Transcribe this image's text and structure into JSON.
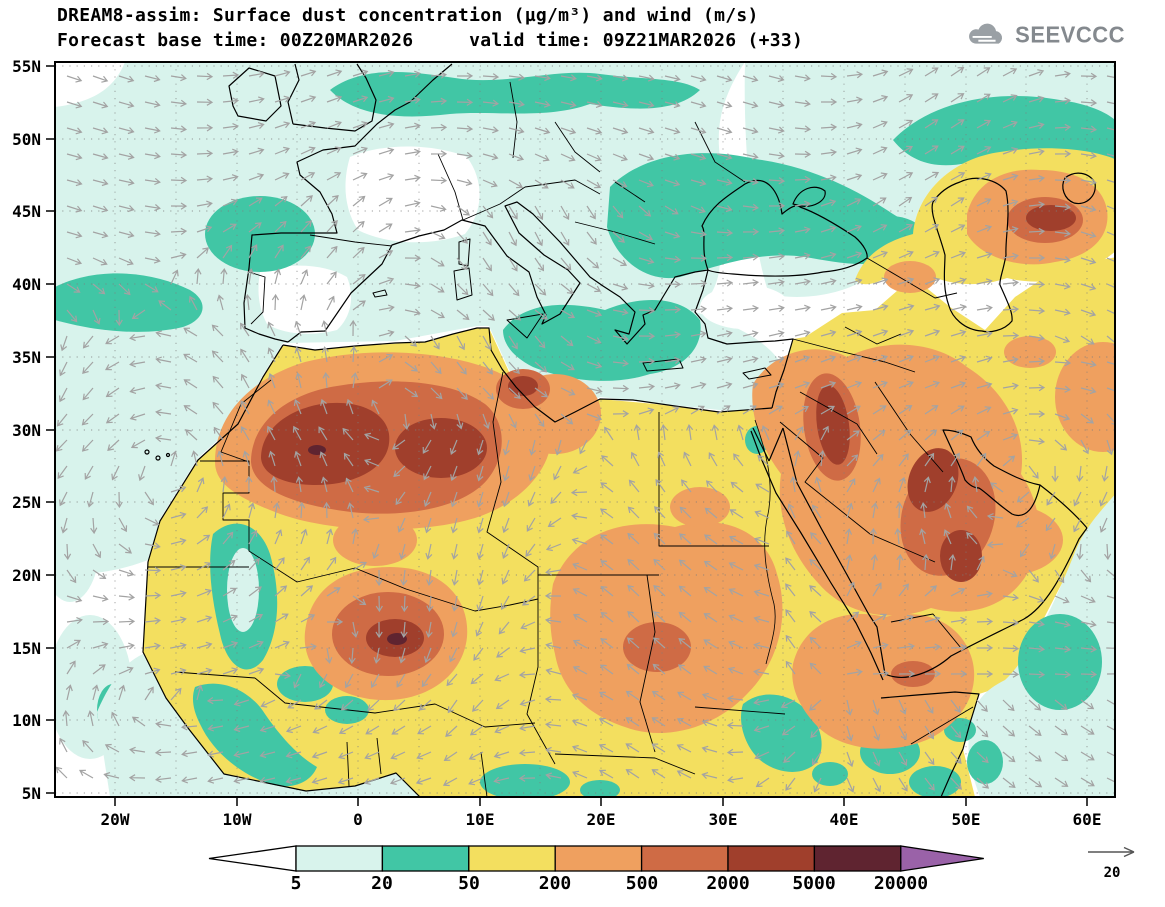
{
  "header": {
    "title_line1": "DREAM8-assim: Surface dust concentration (µg/m³) and wind (m/s)",
    "title_line2": "Forecast base time: 00Z20MAR2026     valid time: 09Z21MAR2026 (+33)",
    "logo_text": "SEEVCCC"
  },
  "axes": {
    "lat_labels": [
      "55N",
      "50N",
      "45N",
      "40N",
      "35N",
      "30N",
      "25N",
      "20N",
      "15N",
      "10N",
      "5N"
    ],
    "lon_labels": [
      "20W",
      "10W",
      "0",
      "10E",
      "20E",
      "30E",
      "40E",
      "50E",
      "60E"
    ]
  },
  "colorbar": {
    "levels": [
      "5",
      "20",
      "50",
      "200",
      "500",
      "2000",
      "5000",
      "20000"
    ],
    "colors": [
      "#ffffff",
      "#d8f3ec",
      "#41c6a5",
      "#f3df5f",
      "#efa05f",
      "#cf6b45",
      "#a03f2c",
      "#5f2430",
      "#9a62a8"
    ]
  },
  "wind_reference": {
    "value": "20"
  },
  "chart_data": {
    "type": "heatmap",
    "subtype": "filled contour map with wind vectors",
    "title": "DREAM8-assim: Surface dust concentration (µg/m³) and wind (m/s)",
    "forecast_base_time": "00Z20MAR2026",
    "valid_time": "09Z21MAR2026",
    "lead_hours": 33,
    "variable": "surface dust concentration",
    "units": "µg/m³",
    "wind_units": "m/s",
    "wind_reference_speed": 20,
    "contour_levels": [
      5,
      20,
      50,
      200,
      500,
      2000,
      5000,
      20000
    ],
    "level_colors": [
      "#ffffff",
      "#d8f3ec",
      "#41c6a5",
      "#f3df5f",
      "#efa05f",
      "#cf6b45",
      "#a03f2c",
      "#5f2430",
      "#9a62a8"
    ],
    "x_ticks": [
      "20W",
      "10W",
      "0",
      "10E",
      "20E",
      "30E",
      "40E",
      "50E",
      "60E"
    ],
    "y_ticks": [
      "55N",
      "50N",
      "45N",
      "40N",
      "35N",
      "30N",
      "25N",
      "20N",
      "15N",
      "10N",
      "5N"
    ],
    "lon_range": [
      "~25W",
      "~62E"
    ],
    "lat_range": [
      "5N",
      "55N"
    ],
    "grid": "dotted graticule every 5 degrees",
    "legend_position": "bottom",
    "hotspots": [
      {
        "region": "Morocco / western Algeria",
        "value_range": "2000-5000+ µg/m³"
      },
      {
        "region": "central Algeria",
        "value_range": "2000-5000 µg/m³"
      },
      {
        "region": "northern Mali",
        "value_range": "5000-20000 µg/m³ core"
      },
      {
        "region": "NE Algeria / Tunisia border",
        "value_range": "2000-5000 µg/m³"
      },
      {
        "region": "Levant (Syria-Jordan corridor)",
        "value_range": "2000-5000 µg/m³"
      },
      {
        "region": "Iraq / Kuwait / Persian Gulf",
        "value_range": "2000-5000 µg/m³"
      },
      {
        "region": "NE of Caspian Sea (Kazakhstan)",
        "value_range": "2000-5000 µg/m³"
      },
      {
        "region": "Chad / Sudan / Red Sea south",
        "value_range": "200-500 µg/m³"
      },
      {
        "region": "broad Sahara and Arabian Peninsula",
        "value_range": "50-500 µg/m³"
      }
    ],
    "background_low_dust": "5-50 µg/m³ over Atlantic, Europe, Mediterranean, Black/Caspian Sea region, Sahel patches, Horn of Africa and Arabian Sea; cyclonic wind circulation visible off NW Africa"
  }
}
